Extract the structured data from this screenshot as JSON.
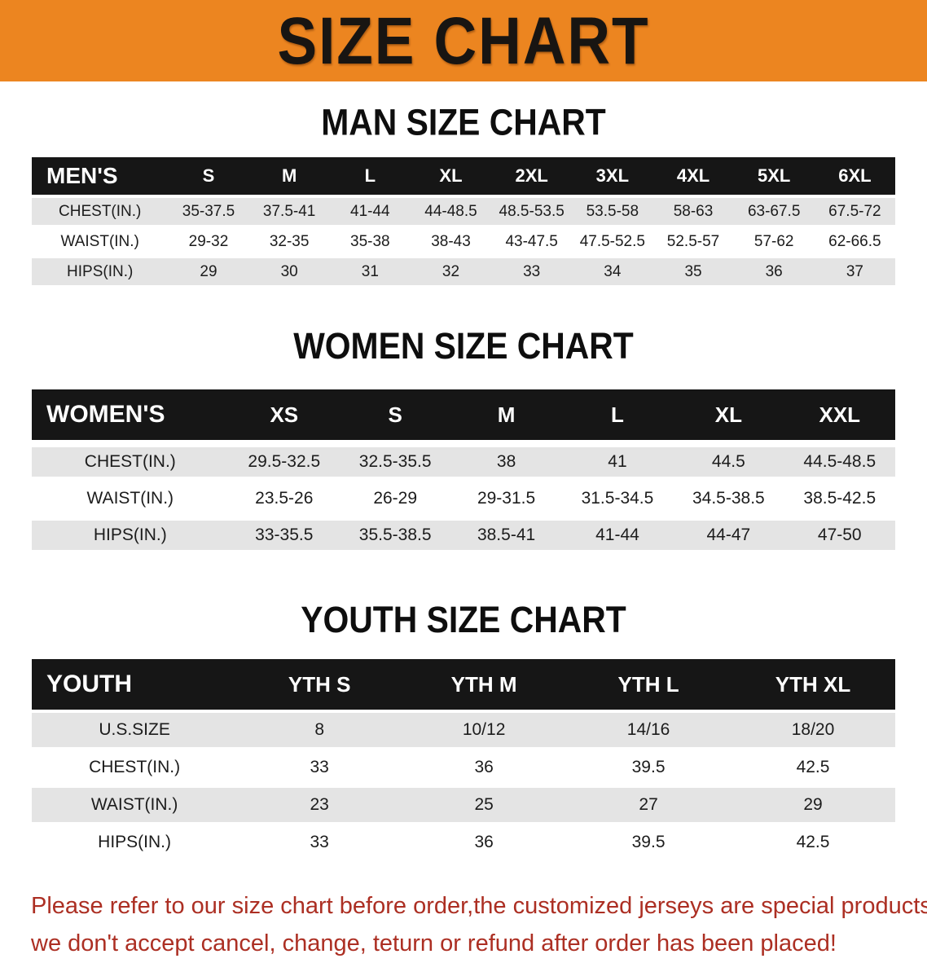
{
  "banner": {
    "title": "SIZE CHART",
    "bg_color": "#EC8520",
    "text_color": "#181512"
  },
  "men": {
    "heading": "MAN SIZE CHART",
    "table": {
      "header": [
        "MEN'S",
        "S",
        "M",
        "L",
        "XL",
        "2XL",
        "3XL",
        "4XL",
        "5XL",
        "6XL"
      ],
      "rows": [
        {
          "label": "CHEST(IN.)",
          "values": [
            "35-37.5",
            "37.5-41",
            "41-44",
            "44-48.5",
            "48.5-53.5",
            "53.5-58",
            "58-63",
            "63-67.5",
            "67.5-72"
          ]
        },
        {
          "label": "WAIST(IN.)",
          "values": [
            "29-32",
            "32-35",
            "35-38",
            "38-43",
            "43-47.5",
            "47.5-52.5",
            "52.5-57",
            "57-62",
            "62-66.5"
          ]
        },
        {
          "label": "HIPS(IN.)",
          "values": [
            "29",
            "30",
            "31",
            "32",
            "33",
            "34",
            "35",
            "36",
            "37"
          ]
        }
      ]
    }
  },
  "women": {
    "heading": "WOMEN SIZE CHART",
    "table": {
      "header": [
        "WOMEN'S",
        "XS",
        "S",
        "M",
        "L",
        "XL",
        "XXL"
      ],
      "rows": [
        {
          "label": "CHEST(IN.)",
          "values": [
            "29.5-32.5",
            "32.5-35.5",
            "38",
            "41",
            "44.5",
            "44.5-48.5"
          ]
        },
        {
          "label": "WAIST(IN.)",
          "values": [
            "23.5-26",
            "26-29",
            "29-31.5",
            "31.5-34.5",
            "34.5-38.5",
            "38.5-42.5"
          ]
        },
        {
          "label": "HIPS(IN.)",
          "values": [
            "33-35.5",
            "35.5-38.5",
            "38.5-41",
            "41-44",
            "44-47",
            "47-50"
          ]
        }
      ]
    }
  },
  "youth": {
    "heading": "YOUTH SIZE CHART",
    "table": {
      "header": [
        "YOUTH",
        "YTH S",
        "YTH M",
        "YTH L",
        "YTH XL"
      ],
      "rows": [
        {
          "label": "U.S.SIZE",
          "values": [
            "8",
            "10/12",
            "14/16",
            "18/20"
          ]
        },
        {
          "label": "CHEST(IN.)",
          "values": [
            "33",
            "36",
            "39.5",
            "42.5"
          ]
        },
        {
          "label": "WAIST(IN.)",
          "values": [
            "23",
            "25",
            "27",
            "29"
          ]
        },
        {
          "label": "HIPS(IN.)",
          "values": [
            "33",
            "36",
            "39.5",
            "42.5"
          ]
        }
      ]
    }
  },
  "note": {
    "color": "#AC2F23",
    "line1": "Please refer to our size chart before order,the customized jerseys are special products,",
    "line2": "we don't accept cancel, change, teturn or refund after order has been placed!"
  }
}
